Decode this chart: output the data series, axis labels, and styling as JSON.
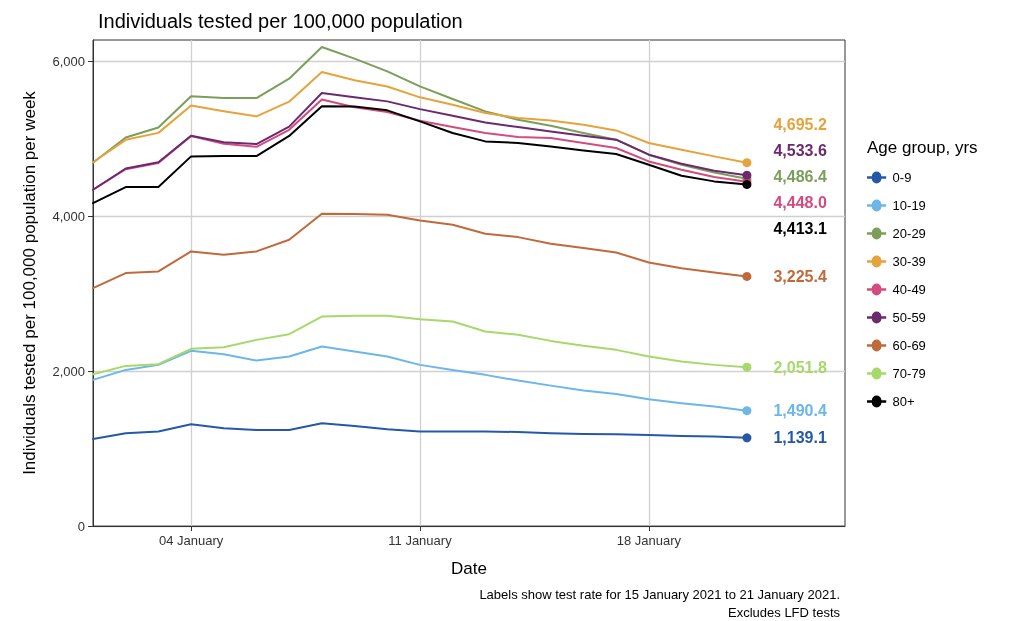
{
  "chart_data": {
    "type": "line",
    "title": "Individuals tested per 100,000 population",
    "xlabel": "Date",
    "ylabel": "Individuals tested per 100,000 population per week",
    "legend_title": "Age group, yrs",
    "annotations": [
      "Labels show test rate for 15 January 2021 to 21 January 2021.",
      "Excludes LFD tests"
    ],
    "x": [
      "2021-01-01",
      "2021-01-02",
      "2021-01-03",
      "2021-01-04",
      "2021-01-05",
      "2021-01-06",
      "2021-01-07",
      "2021-01-08",
      "2021-01-09",
      "2021-01-10",
      "2021-01-11",
      "2021-01-12",
      "2021-01-13",
      "2021-01-14",
      "2021-01-15",
      "2021-01-16",
      "2021-01-17",
      "2021-01-18",
      "2021-01-19",
      "2021-01-20",
      "2021-01-21"
    ],
    "xlim": [
      "2021-01-01",
      "2021-01-24"
    ],
    "xticks": [
      {
        "value": "2021-01-04",
        "label": "04 January"
      },
      {
        "value": "2021-01-11",
        "label": "11 January"
      },
      {
        "value": "2021-01-18",
        "label": "18 January"
      }
    ],
    "ylim": [
      0,
      6280
    ],
    "yticks": [
      {
        "value": 0,
        "label": "0"
      },
      {
        "value": 2000,
        "label": "2,000"
      },
      {
        "value": 4000,
        "label": "4,000"
      },
      {
        "value": 6000,
        "label": "6,000"
      }
    ],
    "grid": true,
    "legend": "right",
    "marker": "none",
    "line_style": "solid",
    "series": [
      {
        "name": "0-9",
        "color": "#2559a8",
        "values": [
          1125,
          1198,
          1220,
          1315,
          1263,
          1241,
          1241,
          1328,
          1293,
          1250,
          1220,
          1220,
          1220,
          1215,
          1198,
          1190,
          1185,
          1177,
          1164,
          1155,
          1139.1
        ],
        "value_labels": [
          null,
          null,
          null,
          null,
          null,
          null,
          null,
          null,
          null,
          null,
          null,
          null,
          null,
          null,
          null,
          null,
          null,
          null,
          null,
          null,
          "1,139.1"
        ]
      },
      {
        "name": "10-19",
        "color": "#6cb6ea",
        "values": [
          1888,
          2017,
          2082,
          2263,
          2220,
          2138,
          2190,
          2319,
          2254,
          2190,
          2082,
          2017,
          1953,
          1879,
          1814,
          1750,
          1707,
          1638,
          1586,
          1543,
          1490.4
        ],
        "value_labels": [
          null,
          null,
          null,
          null,
          null,
          null,
          null,
          null,
          null,
          null,
          null,
          null,
          null,
          null,
          null,
          null,
          null,
          null,
          null,
          null,
          "1,490.4"
        ]
      },
      {
        "name": "20-29",
        "color": "#7b9e5b",
        "values": [
          4694,
          5020,
          5150,
          5552,
          5530,
          5530,
          5780,
          6190,
          6040,
          5875,
          5680,
          5517,
          5358,
          5250,
          5173,
          5078,
          4992,
          4798,
          4668,
          4569,
          4486.4
        ],
        "value_labels": [
          null,
          null,
          null,
          null,
          null,
          null,
          null,
          null,
          null,
          null,
          null,
          null,
          null,
          null,
          null,
          null,
          null,
          null,
          null,
          null,
          "4,486.4"
        ]
      },
      {
        "name": "30-39",
        "color": "#e6a33b",
        "values": [
          4700,
          4990,
          5080,
          5435,
          5360,
          5293,
          5483,
          5867,
          5760,
          5680,
          5539,
          5444,
          5337,
          5272,
          5241,
          5185,
          5112,
          4949,
          4862,
          4776,
          4695.2
        ],
        "value_labels": [
          null,
          null,
          null,
          null,
          null,
          null,
          null,
          null,
          null,
          null,
          null,
          null,
          null,
          null,
          null,
          null,
          null,
          null,
          null,
          null,
          "4,695.2"
        ]
      },
      {
        "name": "40-49",
        "color": "#d44b80",
        "values": [
          4345,
          4610,
          4690,
          5040,
          4940,
          4900,
          5120,
          5510,
          5410,
          5350,
          5237,
          5155,
          5078,
          5026,
          5013,
          4949,
          4884,
          4711,
          4604,
          4509,
          4448.0
        ],
        "value_labels": [
          null,
          null,
          null,
          null,
          null,
          null,
          null,
          null,
          null,
          null,
          null,
          null,
          null,
          null,
          null,
          null,
          null,
          null,
          null,
          null,
          "4,448.0"
        ]
      },
      {
        "name": "50-59",
        "color": "#6b2a6f",
        "values": [
          4345,
          4620,
          4700,
          5043,
          4960,
          4935,
          5160,
          5595,
          5540,
          5487,
          5387,
          5301,
          5215,
          5155,
          5098,
          5043,
          4992,
          4798,
          4681,
          4591,
          4533.6
        ],
        "value_labels": [
          null,
          null,
          null,
          null,
          null,
          null,
          null,
          null,
          null,
          null,
          null,
          null,
          null,
          null,
          null,
          null,
          null,
          null,
          null,
          null,
          "4,533.6"
        ]
      },
      {
        "name": "60-69",
        "color": "#c0693b",
        "values": [
          3074,
          3268,
          3289,
          3548,
          3504,
          3548,
          3698,
          4035,
          4030,
          4022,
          3948,
          3892,
          3776,
          3733,
          3647,
          3591,
          3534,
          3405,
          3332,
          3276,
          3225.4
        ],
        "value_labels": [
          null,
          null,
          null,
          null,
          null,
          null,
          null,
          null,
          null,
          null,
          null,
          null,
          null,
          null,
          null,
          null,
          null,
          null,
          null,
          null,
          "3,225.4"
        ]
      },
      {
        "name": "70-79",
        "color": "#a6d96a",
        "values": [
          1962,
          2069,
          2091,
          2289,
          2311,
          2405,
          2479,
          2707,
          2716,
          2716,
          2673,
          2642,
          2513,
          2470,
          2392,
          2328,
          2276,
          2190,
          2125,
          2082,
          2051.8
        ],
        "value_labels": [
          null,
          null,
          null,
          null,
          null,
          null,
          null,
          null,
          null,
          null,
          null,
          null,
          null,
          null,
          null,
          null,
          null,
          null,
          null,
          null,
          "2,051.8"
        ]
      },
      {
        "name": "80+",
        "color": "#000000",
        "values": [
          4173,
          4380,
          4380,
          4776,
          4780,
          4780,
          5040,
          5423,
          5420,
          5371,
          5229,
          5078,
          4970,
          4949,
          4905,
          4853,
          4806,
          4668,
          4526,
          4453,
          4413.1
        ],
        "value_labels": [
          null,
          null,
          null,
          null,
          null,
          null,
          null,
          null,
          null,
          null,
          null,
          null,
          null,
          null,
          null,
          null,
          null,
          null,
          null,
          null,
          "4,413.1"
        ]
      }
    ]
  }
}
